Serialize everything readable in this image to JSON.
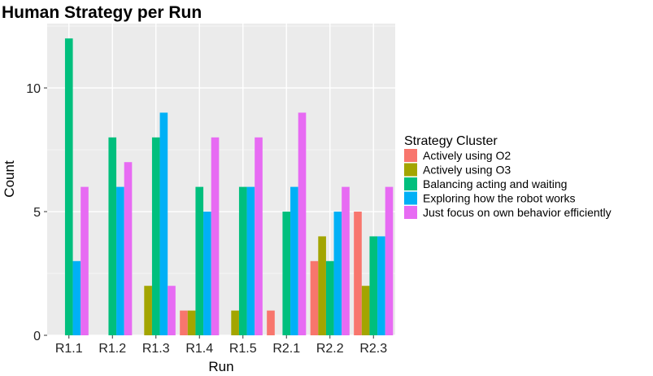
{
  "chart_data": {
    "type": "bar",
    "title": "Human Strategy per Run",
    "xlabel": "Run",
    "ylabel": "Count",
    "ylim": [
      0,
      12.6
    ],
    "yticks": [
      0,
      5,
      10
    ],
    "grid": true,
    "legend_position": "right",
    "categories": [
      "R1.1",
      "R1.2",
      "R1.3",
      "R1.4",
      "R1.5",
      "R2.1",
      "R2.2",
      "R2.3"
    ],
    "legend": {
      "title": "Strategy Cluster"
    },
    "series": [
      {
        "name": "Actively using O2",
        "color": "#F8766D",
        "values": [
          null,
          null,
          null,
          1,
          null,
          1,
          3,
          5
        ]
      },
      {
        "name": "Actively using O3",
        "color": "#A3A500",
        "values": [
          null,
          null,
          2,
          1,
          1,
          null,
          4,
          2
        ]
      },
      {
        "name": "Balancing acting and waiting",
        "color": "#00BF7D",
        "values": [
          12,
          8,
          8,
          6,
          6,
          5,
          3,
          4
        ]
      },
      {
        "name": "Exploring how the robot works",
        "color": "#00B0F6",
        "values": [
          3,
          6,
          9,
          5,
          6,
          6,
          5,
          4
        ]
      },
      {
        "name": "Just focus on own behavior efficiently",
        "color": "#E76BF3",
        "values": [
          6,
          7,
          2,
          8,
          8,
          9,
          6,
          6
        ]
      }
    ]
  }
}
